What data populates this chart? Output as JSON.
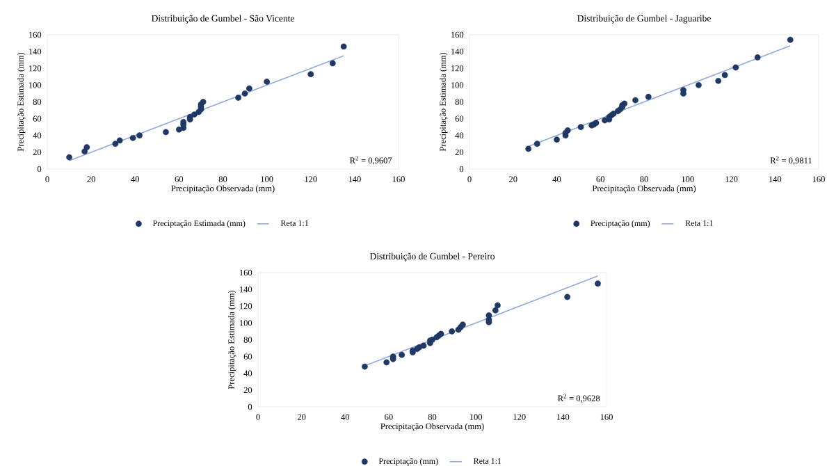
{
  "chart_data": [
    {
      "type": "scatter",
      "title": "Distribuição de Gumbel - São Vicente",
      "xlabel": "Precipitação Observada (mm)",
      "ylabel": "Precipitação Estimada (mm)",
      "series": [
        {
          "name": "Preciptação Estimada (mm)",
          "type": "scatter",
          "marker": "circle",
          "color": "#203864",
          "x": [
            10,
            17,
            18,
            31,
            33,
            39,
            42,
            54,
            60,
            62,
            62,
            62,
            65,
            65,
            67,
            69,
            70,
            70,
            70,
            71,
            87,
            90,
            92,
            100,
            120,
            130,
            135
          ],
          "values": [
            14,
            21,
            26,
            30,
            34,
            37,
            40,
            44,
            47,
            49,
            53,
            56,
            59,
            62,
            65,
            68,
            71,
            74,
            77,
            80,
            85,
            90,
            96,
            104,
            113,
            126,
            146
          ]
        },
        {
          "name": "Reta 1:1",
          "type": "line",
          "color": "#8faadc",
          "x": [
            10,
            135
          ],
          "values": [
            10,
            135
          ]
        }
      ],
      "xlim": [
        0,
        160
      ],
      "ylim": [
        0,
        160
      ],
      "xticks": [
        0,
        20,
        40,
        60,
        80,
        100,
        120,
        140,
        160
      ],
      "yticks": [
        0,
        20,
        40,
        60,
        80,
        100,
        120,
        140,
        160
      ],
      "annotations": [
        "R$^{2}$ = 0,9607"
      ],
      "legend": "bottom",
      "grid": false
    },
    {
      "type": "scatter",
      "title": "Distribuição de Gumbel - Jaguaribe",
      "xlabel": "Precipitação Observada (mm)",
      "ylabel": "Precipitação Estimada (mm)",
      "series": [
        {
          "name": "Preciptação (mm)",
          "type": "scatter",
          "marker": "circle",
          "color": "#203864",
          "x": [
            27,
            31,
            40,
            44,
            44,
            45,
            51,
            56,
            57,
            58,
            62,
            64,
            64,
            65,
            66,
            68,
            69,
            70,
            70,
            71,
            76,
            82,
            98,
            98,
            105,
            114,
            117,
            122,
            132,
            147
          ],
          "values": [
            24,
            30,
            35,
            40,
            43,
            46,
            50,
            52,
            53,
            55,
            58,
            59,
            62,
            64,
            66,
            69,
            71,
            74,
            76,
            78,
            82,
            86,
            90,
            94,
            100,
            105,
            112,
            121,
            133,
            154
          ]
        },
        {
          "name": "Reta 1:1",
          "type": "line",
          "color": "#8faadc",
          "x": [
            27,
            147
          ],
          "values": [
            27,
            147
          ]
        }
      ],
      "xlim": [
        0,
        160
      ],
      "ylim": [
        0,
        160
      ],
      "xticks": [
        0,
        20,
        40,
        60,
        80,
        100,
        120,
        140,
        160
      ],
      "yticks": [
        0,
        20,
        40,
        60,
        80,
        100,
        120,
        140,
        160
      ],
      "annotations": [
        "R$^{2}$ = 0,9811"
      ],
      "legend": "bottom",
      "grid": false
    },
    {
      "type": "scatter",
      "title": "Distribuição de Gumbel - Pereiro",
      "xlabel": "Precipitação Observada (mm)",
      "ylabel": "Precipitação Estimada (mm)",
      "series": [
        {
          "name": "Preciptação (mm)",
          "type": "scatter",
          "marker": "circle",
          "color": "#203864",
          "x": [
            49,
            59,
            62,
            62,
            66,
            71,
            71,
            73,
            74,
            76,
            79,
            79,
            80,
            82,
            83,
            84,
            89,
            92,
            93,
            94,
            106,
            106,
            106,
            109,
            110,
            142,
            156
          ],
          "values": [
            48,
            53,
            57,
            60,
            62,
            65,
            67,
            69,
            71,
            73,
            76,
            79,
            80,
            83,
            85,
            87,
            90,
            92,
            95,
            98,
            101,
            104,
            109,
            115,
            121,
            131,
            147
          ]
        },
        {
          "name": "Reta 1:1",
          "type": "line",
          "color": "#8faadc",
          "x": [
            49,
            156
          ],
          "values": [
            49,
            156
          ]
        }
      ],
      "xlim": [
        0,
        160
      ],
      "ylim": [
        0,
        160
      ],
      "xticks": [
        0,
        20,
        40,
        60,
        80,
        100,
        120,
        140,
        160
      ],
      "yticks": [
        0,
        20,
        40,
        60,
        80,
        100,
        120,
        140,
        160
      ],
      "annotations": [
        "R$^{2}$ = 0,9628"
      ],
      "legend": "bottom",
      "grid": false
    }
  ]
}
